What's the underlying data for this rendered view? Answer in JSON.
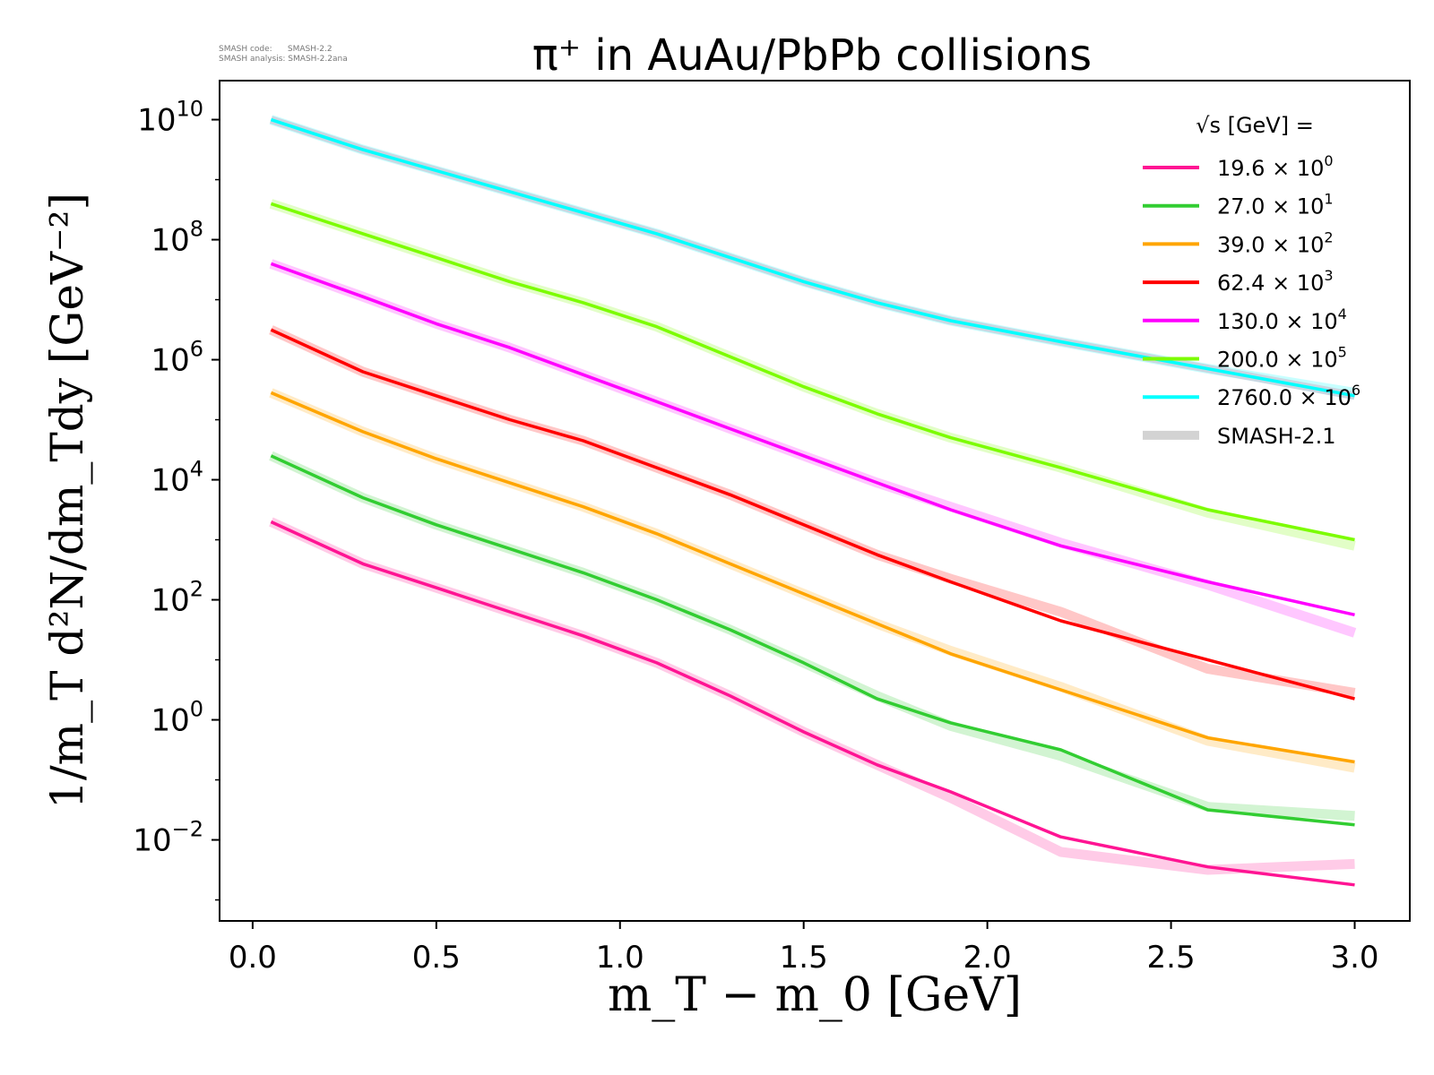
{
  "watermark": {
    "line1": "SMASH code:      SMASH-2.2",
    "line2": "SMASH analysis: SMASH-2.2ana"
  },
  "chart_data": {
    "type": "line",
    "title": "π⁺ in AuAu/PbPb collisions",
    "xlabel": "m_T − m_0 [GeV]",
    "ylabel": "1/m_T d²N/dm_Tdy [GeV⁻²]",
    "xlim": [
      -0.09,
      3.15
    ],
    "ylim_log10": [
      -3.35,
      10.65
    ],
    "yscale": "log",
    "x_ticks": [
      "0.0",
      "0.5",
      "1.0",
      "1.5",
      "2.0",
      "2.5",
      "3.0"
    ],
    "y_ticks_exponent": [
      "−2",
      "0",
      "2",
      "4",
      "6",
      "8",
      "10"
    ],
    "legend_title": "√s [GeV] =",
    "legend_placement": "top-right",
    "x": [
      0.05,
      0.3,
      0.5,
      0.7,
      0.9,
      1.1,
      1.3,
      1.5,
      1.7,
      1.9,
      2.2,
      2.6,
      3.0
    ],
    "series": [
      {
        "name": "19.6",
        "exp": "0",
        "color": "#ff1493",
        "log10_values": [
          3.3,
          2.6,
          2.2,
          1.8,
          1.4,
          0.95,
          0.4,
          -0.2,
          -0.75,
          -1.2,
          -1.95,
          -2.45,
          -2.75
        ],
        "ref_log10_values": [
          3.3,
          2.6,
          2.2,
          1.8,
          1.4,
          0.95,
          0.4,
          -0.2,
          -0.75,
          -1.3,
          -2.2,
          -2.5,
          -2.4
        ]
      },
      {
        "name": "27.0",
        "exp": "1",
        "color": "#32cd32",
        "log10_values": [
          4.4,
          3.7,
          3.25,
          2.85,
          2.45,
          2.0,
          1.5,
          0.95,
          0.35,
          -0.05,
          -0.5,
          -1.5,
          -1.75
        ],
        "ref_log10_values": [
          4.4,
          3.7,
          3.25,
          2.85,
          2.45,
          2.0,
          1.5,
          0.95,
          0.4,
          -0.1,
          -0.6,
          -1.45,
          -1.6
        ]
      },
      {
        "name": "39.0",
        "exp": "2",
        "color": "#ffa500",
        "log10_values": [
          5.45,
          4.8,
          4.35,
          3.95,
          3.55,
          3.1,
          2.6,
          2.1,
          1.6,
          1.1,
          0.5,
          -0.3,
          -0.7
        ],
        "ref_log10_values": [
          5.45,
          4.8,
          4.35,
          3.95,
          3.55,
          3.1,
          2.6,
          2.1,
          1.6,
          1.15,
          0.55,
          -0.35,
          -0.8
        ]
      },
      {
        "name": "62.4",
        "exp": "3",
        "color": "#ff0000",
        "log10_values": [
          6.5,
          5.8,
          5.4,
          5.0,
          4.65,
          4.2,
          3.75,
          3.25,
          2.75,
          2.3,
          1.65,
          1.0,
          0.35
        ],
        "ref_log10_values": [
          6.5,
          5.8,
          5.4,
          5.0,
          4.65,
          4.2,
          3.75,
          3.25,
          2.75,
          2.35,
          1.8,
          0.85,
          0.45
        ]
      },
      {
        "name": "130.0",
        "exp": "4",
        "color": "#ff00ff",
        "log10_values": [
          7.6,
          7.05,
          6.6,
          6.2,
          5.75,
          5.3,
          4.85,
          4.4,
          3.95,
          3.5,
          2.9,
          2.3,
          1.75
        ],
        "ref_log10_values": [
          7.6,
          7.05,
          6.6,
          6.2,
          5.75,
          5.3,
          4.85,
          4.4,
          3.95,
          3.55,
          2.95,
          2.25,
          1.45
        ]
      },
      {
        "name": "200.0",
        "exp": "5",
        "color": "#7cfc00",
        "log10_values": [
          8.6,
          8.1,
          7.7,
          7.3,
          6.95,
          6.55,
          6.05,
          5.55,
          5.1,
          4.7,
          4.2,
          3.5,
          3.0
        ],
        "ref_log10_values": [
          8.6,
          8.1,
          7.7,
          7.3,
          6.95,
          6.55,
          6.05,
          5.55,
          5.1,
          4.7,
          4.2,
          3.45,
          2.9
        ]
      },
      {
        "name": "2760.0",
        "exp": "6",
        "color": "#00ffff",
        "log10_values": [
          10.0,
          9.5,
          9.15,
          8.8,
          8.45,
          8.1,
          7.7,
          7.3,
          6.95,
          6.65,
          6.3,
          5.85,
          5.4
        ],
        "ref_log10_values": [
          10.0,
          9.5,
          9.15,
          8.8,
          8.45,
          8.1,
          7.7,
          7.3,
          6.95,
          6.65,
          6.3,
          5.85,
          5.45
        ]
      }
    ],
    "reference_label": "SMASH-2.1",
    "reference_color": "#d3d3d3"
  }
}
